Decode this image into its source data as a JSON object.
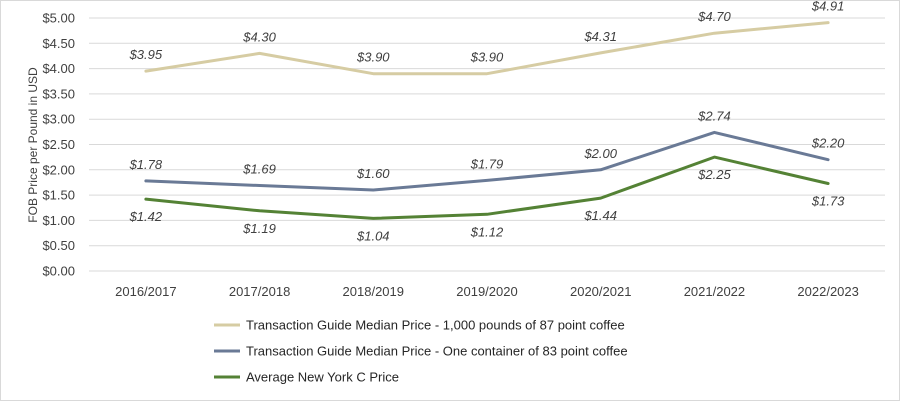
{
  "chart_data": {
    "type": "line",
    "title": "",
    "xlabel": "",
    "ylabel": "FOB Price per Pound in USD",
    "ylim": [
      0,
      5
    ],
    "y_ticks": [
      0,
      0.5,
      1,
      1.5,
      2,
      2.5,
      3,
      3.5,
      4,
      4.5,
      5
    ],
    "y_tick_labels": [
      "$0.00",
      "$0.50",
      "$1.00",
      "$1.50",
      "$2.00",
      "$2.50",
      "$3.00",
      "$3.50",
      "$4.00",
      "$4.50",
      "$5.00"
    ],
    "grid": "horizontal",
    "legend_position": "bottom",
    "categories": [
      "2016/2017",
      "2017/2018",
      "2018/2019",
      "2019/2020",
      "2020/2021",
      "2021/2022",
      "2022/2023"
    ],
    "series": [
      {
        "name": "Transaction Guide Median Price - 1,000 pounds of 87 point coffee",
        "color": "#d6cca3",
        "values": [
          3.95,
          4.3,
          3.9,
          3.9,
          4.31,
          4.7,
          4.91
        ],
        "labels": [
          "$3.95",
          "$4.30",
          "$3.90",
          "$3.90",
          "$4.31",
          "$4.70",
          "$4.91"
        ]
      },
      {
        "name": "Transaction Guide Median Price - One container of 83 point coffee",
        "color": "#6a7a96",
        "values": [
          1.78,
          1.69,
          1.6,
          1.79,
          2.0,
          2.74,
          2.2
        ],
        "labels": [
          "$1.78",
          "$1.69",
          "$1.60",
          "$1.79",
          "$2.00",
          "$2.74",
          "$2.20"
        ]
      },
      {
        "name": "Average New York C Price",
        "color": "#548235",
        "values": [
          1.42,
          1.19,
          1.04,
          1.12,
          1.44,
          2.25,
          1.73
        ],
        "labels": [
          "$1.42",
          "$1.19",
          "$1.04",
          "$1.12",
          "$1.44",
          "$2.25",
          "$1.73"
        ]
      }
    ]
  }
}
